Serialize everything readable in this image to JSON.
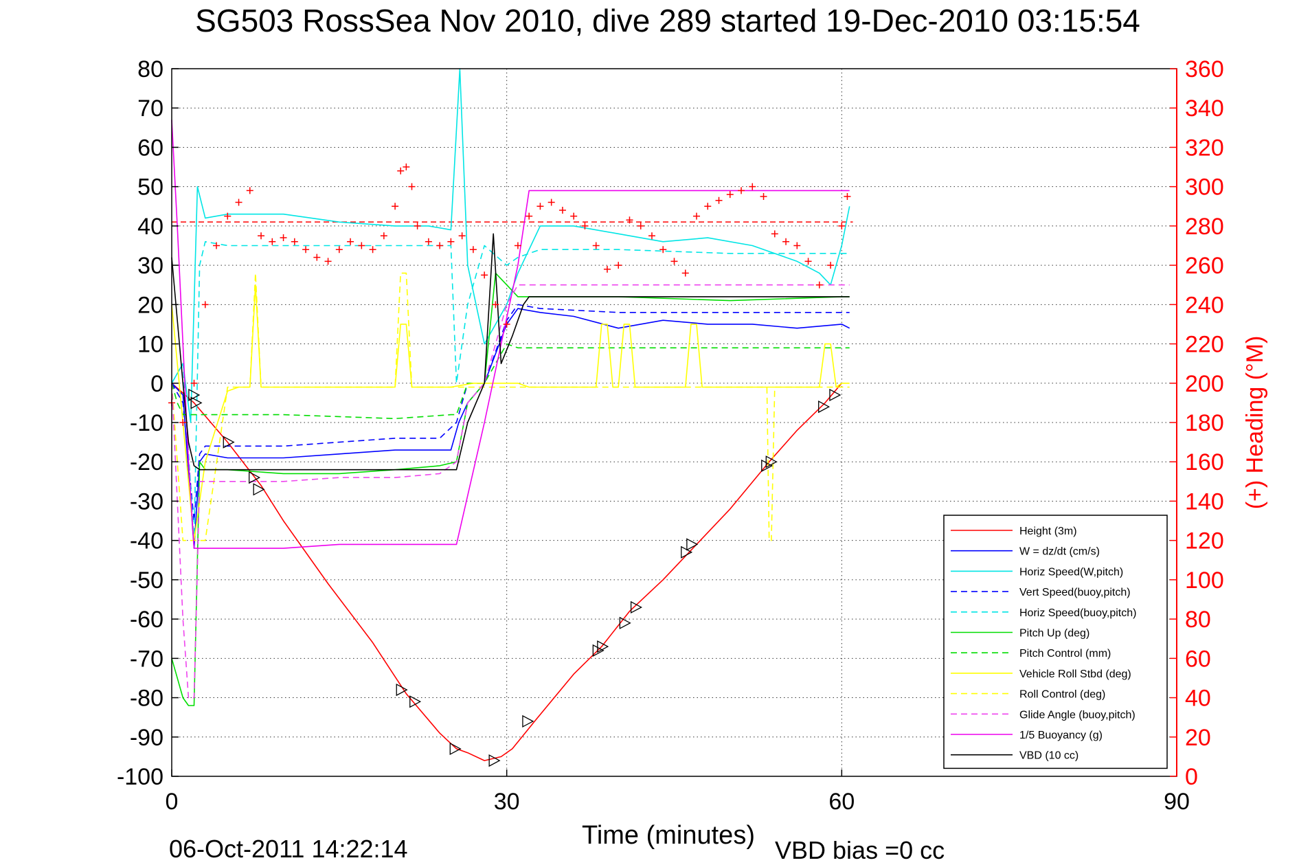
{
  "chart_data": {
    "type": "line",
    "title": "SG503 RossSea Nov 2010, dive 289 started 19-Dec-2010 03:15:54",
    "xlabel": "Time (minutes)",
    "ylabel_right": "(+) Heading (°M)",
    "footer_left": "06-Oct-2011 14:22:14",
    "footer_right": "VBD bias =0 cc",
    "xlim": [
      0,
      90
    ],
    "ylim": [
      -100,
      80
    ],
    "ylim_right": [
      0,
      360
    ],
    "xticks": [
      0,
      30,
      60,
      90
    ],
    "xtick_labels": [
      "0",
      "30",
      "60",
      "90"
    ],
    "yticks": [
      80,
      70,
      60,
      50,
      40,
      30,
      20,
      10,
      0,
      -10,
      -20,
      -30,
      -40,
      -50,
      -60,
      -70,
      -80,
      -90,
      -100
    ],
    "ytick_labels": [
      "80",
      "70",
      "60",
      "50",
      "40",
      "30",
      "20",
      "10",
      "0",
      "-10",
      "-20",
      "-30",
      "-40",
      "-50",
      "-60",
      "-70",
      "-80",
      "-90",
      "-100"
    ],
    "yticks_right": [
      360,
      340,
      320,
      300,
      280,
      260,
      240,
      220,
      200,
      180,
      160,
      140,
      120,
      100,
      80,
      60,
      40,
      20,
      0
    ],
    "ytick_labels_right": [
      "360",
      "340",
      "320",
      "300",
      "280",
      "260",
      "240",
      "220",
      "200",
      "180",
      "160",
      "140",
      "120",
      "100",
      "80",
      "60",
      "40",
      "20",
      "0"
    ],
    "grid": true,
    "legend_position": "bottom-right",
    "right_axis_color": "#ff0000",
    "series": [
      {
        "name": "Height (3m)",
        "color": "#ff0000",
        "dash": "solid",
        "x": [
          0,
          2,
          5,
          8,
          10,
          14,
          18,
          21,
          24,
          25.5,
          26.5,
          28,
          29.5,
          30.5,
          32.5,
          36,
          38.5,
          41,
          44,
          47,
          50,
          53.5,
          56,
          58.5,
          60
        ],
        "y": [
          0,
          -5,
          -15,
          -26,
          -35,
          -51,
          -66,
          -79,
          -89,
          -93,
          -94,
          -96,
          -95,
          -93,
          -86,
          -74,
          -67,
          -58,
          -50,
          -41,
          -32,
          -20,
          -12,
          -5,
          0
        ]
      },
      {
        "name": "W = dz/dt (cm/s)",
        "color": "#0000ff",
        "dash": "solid",
        "x": [
          0,
          1,
          2,
          2.5,
          3,
          5,
          10,
          15,
          20,
          25,
          25.7,
          26.5,
          28,
          30,
          31,
          33,
          36,
          40,
          44,
          48,
          52,
          56,
          60,
          60.7
        ],
        "y": [
          0,
          -3,
          -42,
          -20,
          -18,
          -19,
          -19,
          -18,
          -17,
          -17,
          -10,
          -5,
          0,
          15,
          19,
          18,
          17,
          14,
          16,
          15,
          15,
          14,
          15,
          14
        ]
      },
      {
        "name": "Horiz Speed(W,pitch)",
        "color": "#00e5e5",
        "dash": "solid",
        "x": [
          0,
          1,
          1.7,
          2.3,
          3,
          5,
          10,
          15,
          20,
          23,
          25,
          25.8,
          26.5,
          28,
          30,
          31,
          33,
          36,
          40,
          44,
          48,
          52,
          56,
          58,
          59,
          60,
          60.7
        ],
        "y": [
          0,
          5,
          -10,
          50,
          42,
          43,
          43,
          41,
          40,
          40,
          39,
          80,
          30,
          10,
          20,
          28,
          40,
          40,
          38,
          36,
          37,
          35,
          31,
          28,
          25,
          35,
          45
        ]
      },
      {
        "name": "Vert Speed(buoy,pitch)",
        "color": "#0000ff",
        "dash": "dashed",
        "x": [
          0,
          1,
          2,
          2.5,
          3,
          5,
          10,
          15,
          20,
          24,
          25.5,
          26.5,
          28,
          30,
          31,
          33,
          40,
          50,
          60,
          60.7
        ],
        "y": [
          0,
          -5,
          -35,
          -18,
          -16,
          -16,
          -16,
          -15,
          -14,
          -14,
          -10,
          0,
          0,
          16,
          20,
          19,
          18,
          18,
          18,
          18
        ]
      },
      {
        "name": "Horiz Speed(buoy,pitch)",
        "color": "#00e5e5",
        "dash": "dashed",
        "x": [
          0,
          1,
          2,
          2.5,
          3,
          5,
          10,
          15,
          20,
          25,
          25.5,
          26.5,
          28,
          30,
          31,
          33,
          40,
          50,
          60,
          60.7
        ],
        "y": [
          0,
          5,
          -40,
          30,
          36,
          35,
          35,
          35,
          35,
          35,
          0,
          20,
          35,
          30,
          32,
          34,
          34,
          33,
          33,
          33
        ]
      },
      {
        "name": "Pitch Up (deg)",
        "color": "#00dd00",
        "dash": "solid",
        "x": [
          0,
          1,
          1.5,
          2,
          2.5,
          3,
          5,
          10,
          15,
          20,
          24,
          25.5,
          26.5,
          28,
          29,
          30,
          31,
          33,
          40,
          50,
          60,
          60.7
        ],
        "y": [
          -70,
          -80,
          -82,
          -82,
          -20,
          -22,
          -22,
          -23,
          -23,
          -22,
          -21,
          -20,
          -5,
          0,
          28,
          25,
          22,
          22,
          22,
          21,
          22,
          22
        ]
      },
      {
        "name": "Pitch Control (mm)",
        "color": "#00dd00",
        "dash": "dashed",
        "x": [
          0,
          0.5,
          1,
          3,
          10,
          20,
          25,
          25.5,
          26.5,
          28,
          30,
          31,
          32,
          40,
          50,
          60,
          60.7
        ],
        "y": [
          0,
          -5,
          -8,
          -8,
          -8,
          -9,
          -8,
          -8,
          0,
          0,
          10,
          9,
          9,
          9,
          9,
          9,
          9
        ]
      },
      {
        "name": "Vehicle Roll Stbd (deg)",
        "color": "#ffff00",
        "dash": "solid",
        "x": [
          0,
          1,
          2,
          3,
          5,
          6,
          7,
          7.5,
          8,
          15,
          20,
          20.5,
          21,
          21.5,
          22,
          25,
          27,
          28,
          30,
          31,
          32,
          33,
          37,
          38,
          38.5,
          39,
          39.5,
          40,
          40.5,
          41,
          41.5,
          42,
          46,
          46.5,
          47,
          47.5,
          48,
          53,
          58,
          58.5,
          59,
          59.5,
          60,
          60.7
        ],
        "y": [
          20,
          -10,
          -40,
          -20,
          -2,
          -1,
          -1,
          25,
          -1,
          -1,
          -1,
          15,
          15,
          -1,
          -1,
          -1,
          0,
          0,
          0,
          0,
          -1,
          -1,
          -1,
          -1,
          15,
          15,
          -1,
          -1,
          15,
          15,
          -1,
          -1,
          -1,
          15,
          15,
          -1,
          -1,
          -1,
          -1,
          10,
          10,
          -1,
          0,
          0
        ]
      },
      {
        "name": "Roll Control (deg)",
        "color": "#ffff00",
        "dash": "dashed",
        "x": [
          0,
          1,
          2,
          3,
          5,
          6,
          7,
          7.5,
          8,
          20,
          20.5,
          21,
          21.5,
          25,
          30,
          53.3,
          53.5,
          53.7,
          54,
          60,
          60.7
        ],
        "y": [
          0,
          -40,
          -40,
          -40,
          -1,
          -1,
          -1,
          28,
          -1,
          -1,
          28,
          28,
          -1,
          -1,
          -1,
          -1,
          -40,
          -40,
          -1,
          -1,
          -1
        ]
      },
      {
        "name": "Glide Angle (buoy,pitch)",
        "color": "#ee44ee",
        "dash": "dashed",
        "x": [
          0,
          1,
          1.5,
          2,
          2.5,
          3,
          5,
          10,
          15,
          20,
          24,
          25.5,
          26.5,
          28,
          30,
          31,
          33,
          40,
          50,
          60,
          60.7
        ],
        "y": [
          0,
          -60,
          -80,
          -80,
          -25,
          -25,
          -25,
          -25,
          -24,
          -24,
          -23,
          -20,
          -5,
          0,
          20,
          25,
          25,
          25,
          25,
          25,
          25
        ]
      },
      {
        "name": "1/5 Buoyancy (g)",
        "color": "#ee00ee",
        "dash": "solid",
        "x": [
          0,
          0.5,
          1,
          1.5,
          2,
          3,
          5,
          10,
          15,
          20,
          25,
          25.5,
          28,
          31,
          32,
          35,
          40,
          50,
          60,
          60.7
        ],
        "y": [
          67,
          40,
          10,
          -20,
          -42,
          -42,
          -42,
          -42,
          -41,
          -41,
          -41,
          -41,
          -10,
          30,
          49,
          49,
          49,
          49,
          49,
          49
        ]
      },
      {
        "name": "VBD (10 cc)",
        "color": "#000000",
        "dash": "solid",
        "x": [
          0,
          1,
          1.5,
          2,
          2.5,
          3,
          5,
          10,
          15,
          20,
          24,
          25.5,
          26.5,
          28,
          28.8,
          29.5,
          30.5,
          31.5,
          32,
          35,
          40,
          50,
          60,
          60.7
        ],
        "y": [
          32,
          0,
          -15,
          -21,
          -22,
          -22,
          -22,
          -22,
          -22,
          -22,
          -22,
          -22,
          -10,
          0,
          38,
          5,
          12,
          20,
          22,
          22,
          22,
          22,
          22,
          22
        ]
      }
    ],
    "heading": {
      "name": "(+) Heading",
      "color": "#ff0000",
      "x": [
        0,
        1,
        2,
        3,
        4,
        5,
        6,
        7,
        8,
        9,
        10,
        11,
        12,
        13,
        14,
        15,
        16,
        17,
        18,
        19,
        20,
        20.5,
        21,
        21.5,
        22,
        23,
        24,
        25,
        26,
        27,
        28,
        29,
        30,
        31,
        32,
        33,
        34,
        35,
        36,
        37,
        38,
        39,
        40,
        41,
        42,
        43,
        44,
        45,
        46,
        47,
        48,
        49,
        50,
        51,
        52,
        53,
        54,
        55,
        56,
        57,
        58,
        59,
        60,
        60.5
      ],
      "y": [
        190,
        180,
        200,
        240,
        270,
        285,
        292,
        298,
        275,
        272,
        274,
        272,
        268,
        264,
        262,
        268,
        272,
        270,
        268,
        275,
        290,
        308,
        310,
        300,
        280,
        272,
        270,
        272,
        275,
        268,
        255,
        240,
        230,
        270,
        285,
        290,
        292,
        288,
        285,
        280,
        270,
        258,
        260,
        283,
        280,
        275,
        268,
        262,
        256,
        285,
        290,
        293,
        296,
        298,
        300,
        295,
        276,
        272,
        270,
        262,
        250,
        260,
        280,
        295
      ]
    },
    "heading_reference": 282,
    "markers": {
      "name": "triangles",
      "x": [
        1.9,
        2.1,
        5,
        7.3,
        7.7,
        20.5,
        21.7,
        25.3,
        28.8,
        31.8,
        38.1,
        38.5,
        40.5,
        41.5,
        46,
        46.5,
        53.2,
        53.6,
        58.3,
        59.3
      ],
      "y": [
        -3,
        -5,
        -15,
        -24,
        -27,
        -78,
        -81,
        -93,
        -96,
        -86,
        -68,
        -67,
        -61,
        -57,
        -43,
        -41,
        -21,
        -20,
        -6,
        -3
      ]
    }
  }
}
